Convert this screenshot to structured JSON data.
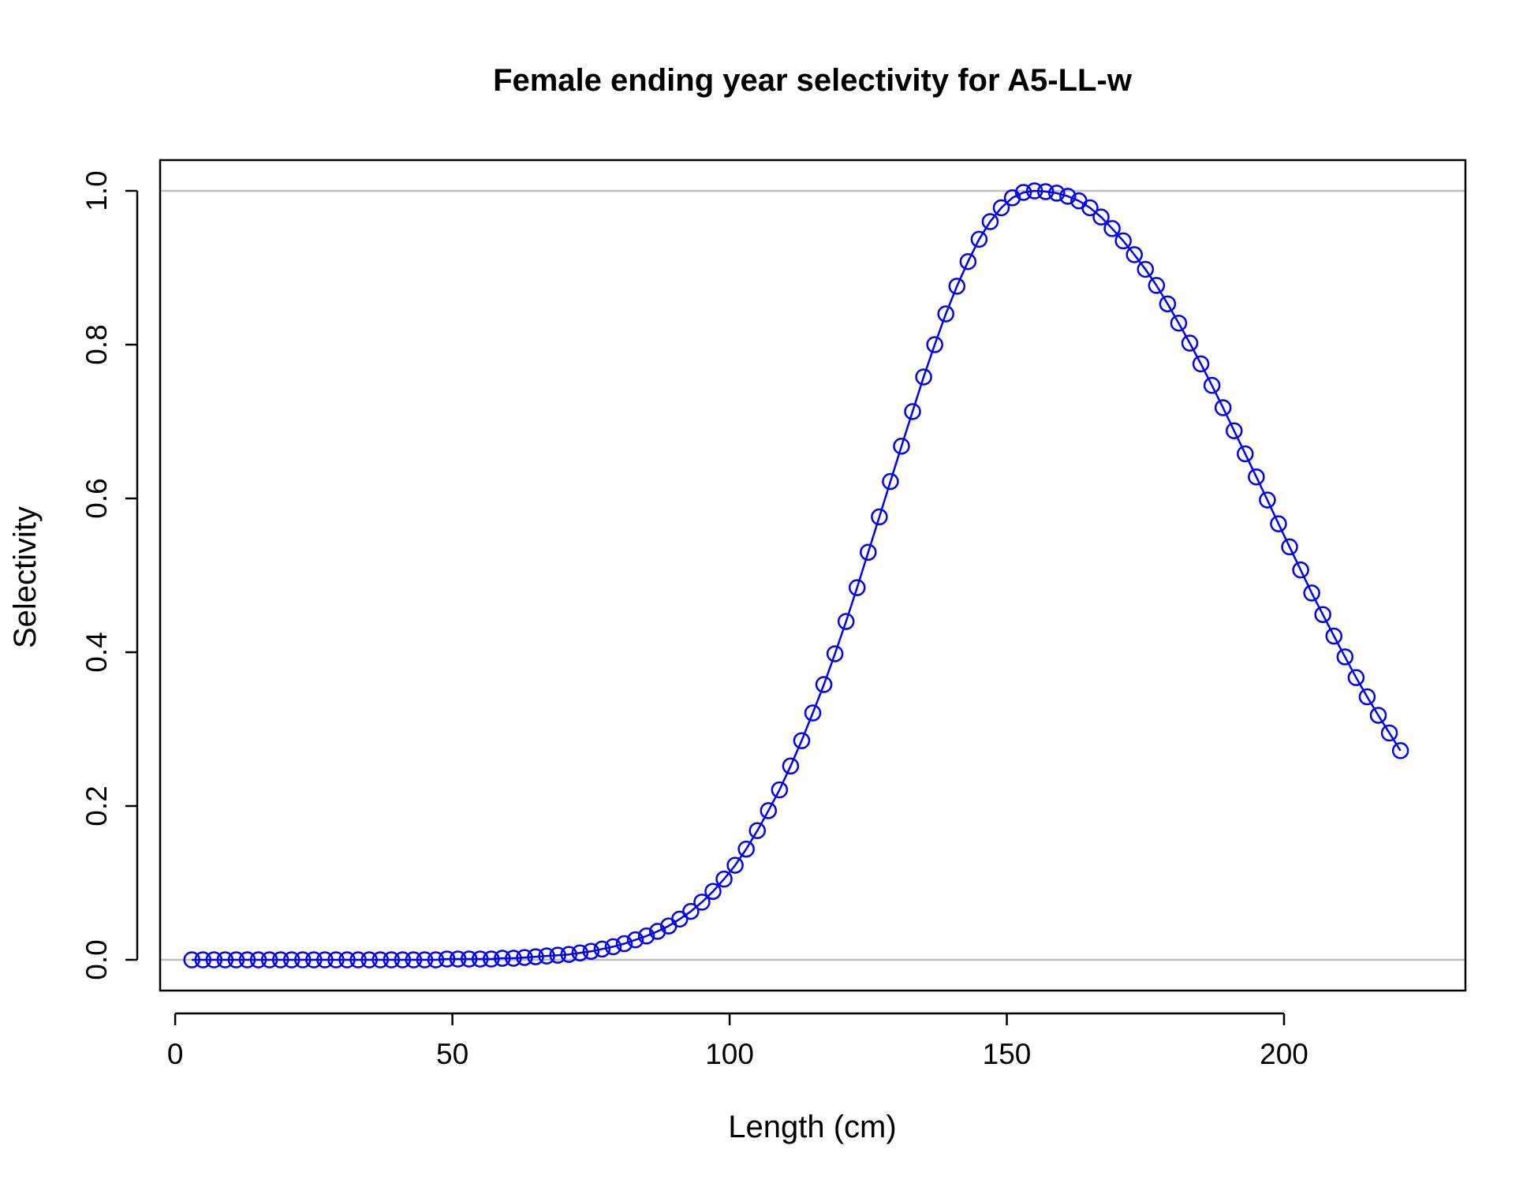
{
  "chart_data": {
    "type": "line",
    "title": "Female ending year selectivity for A5-LL-w",
    "xlabel": "Length (cm)",
    "ylabel": "Selectivity",
    "xlim": [
      -2.72,
      232.72
    ],
    "ylim": [
      -0.04,
      1.04
    ],
    "xticks": [
      0,
      50,
      100,
      150,
      200
    ],
    "yticks": [
      0.0,
      0.2,
      0.4,
      0.6,
      0.8,
      1.0
    ],
    "xtick_labels": [
      "0",
      "50",
      "100",
      "150",
      "200"
    ],
    "ytick_labels": [
      "0.0",
      "0.2",
      "0.4",
      "0.6",
      "0.8",
      "1.0"
    ],
    "reference_lines_y": [
      0,
      1
    ],
    "grid": false,
    "legend": "none",
    "series": [
      {
        "color": "#0000ff",
        "marker": "open-circle",
        "x": [
          3,
          5,
          7,
          9,
          11,
          13,
          15,
          17,
          19,
          21,
          23,
          25,
          27,
          29,
          31,
          33,
          35,
          37,
          39,
          41,
          43,
          45,
          47,
          49,
          51,
          53,
          55,
          57,
          59,
          61,
          63,
          65,
          67,
          69,
          71,
          73,
          75,
          77,
          79,
          81,
          83,
          85,
          87,
          89,
          91,
          93,
          95,
          97,
          99,
          101,
          103,
          105,
          107,
          109,
          111,
          113,
          115,
          117,
          119,
          121,
          123,
          125,
          127,
          129,
          131,
          133,
          135,
          137,
          139,
          141,
          143,
          145,
          147,
          149,
          151,
          153,
          155,
          157,
          159,
          161,
          163,
          165,
          167,
          169,
          171,
          173,
          175,
          177,
          179,
          181,
          183,
          185,
          187,
          189,
          191,
          193,
          195,
          197,
          199,
          201,
          203,
          205,
          207,
          209,
          211,
          213,
          215,
          217,
          219,
          221
        ],
        "y": [
          0,
          0,
          0,
          0,
          0,
          0,
          0,
          0,
          0,
          0,
          0,
          0,
          0,
          0,
          0,
          0,
          0,
          0,
          0,
          0,
          0,
          0,
          0,
          0.001,
          0.001,
          0.001,
          0.001,
          0.001,
          0.002,
          0.002,
          0.003,
          0.004,
          0.005,
          0.006,
          0.007,
          0.009,
          0.011,
          0.014,
          0.017,
          0.021,
          0.026,
          0.031,
          0.037,
          0.044,
          0.053,
          0.063,
          0.075,
          0.089,
          0.105,
          0.123,
          0.144,
          0.168,
          0.194,
          0.221,
          0.252,
          0.285,
          0.321,
          0.358,
          0.398,
          0.44,
          0.484,
          0.53,
          0.576,
          0.622,
          0.668,
          0.713,
          0.758,
          0.8,
          0.84,
          0.876,
          0.908,
          0.937,
          0.96,
          0.978,
          0.991,
          0.998,
          1.0,
          0.999,
          0.997,
          0.993,
          0.987,
          0.978,
          0.966,
          0.951,
          0.935,
          0.917,
          0.898,
          0.877,
          0.853,
          0.828,
          0.802,
          0.775,
          0.747,
          0.718,
          0.688,
          0.658,
          0.628,
          0.598,
          0.567,
          0.537,
          0.507,
          0.477,
          0.449,
          0.421,
          0.394,
          0.367,
          0.342,
          0.318,
          0.295,
          0.272
        ]
      }
    ]
  }
}
